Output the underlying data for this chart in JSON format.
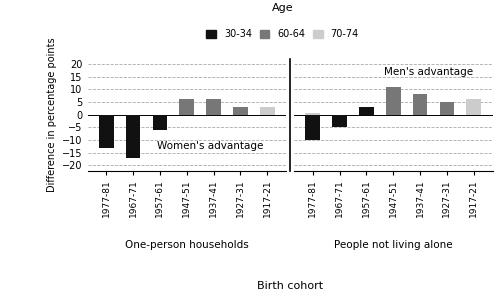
{
  "title": "Age",
  "xlabel": "Birth cohort",
  "ylabel": "Difference in percentage points",
  "ylim": [
    -22,
    22
  ],
  "yticks": [
    -20,
    -15,
    -10,
    -5,
    0,
    5,
    10,
    15,
    20
  ],
  "cohorts": [
    "1977-81",
    "1967-71",
    "1957-61",
    "1947-51",
    "1937-41",
    "1927-31",
    "1917-21"
  ],
  "legend_labels": [
    "30-34",
    "60-64",
    "70-74"
  ],
  "legend_colors": [
    "#111111",
    "#777777",
    "#cccccc"
  ],
  "left_label": "One-person households",
  "right_label": "People not living alone",
  "annotation_left": "Women's advantage",
  "annotation_right": "Men's advantage",
  "left_data": {
    "30-34": [
      -13,
      -17,
      -6,
      null,
      null,
      null,
      null
    ],
    "60-64": [
      null,
      null,
      null,
      6,
      6,
      3,
      null
    ],
    "70-74": [
      null,
      null,
      null,
      null,
      null,
      null,
      3
    ]
  },
  "right_data": {
    "30-34": [
      -10,
      -5,
      3,
      null,
      null,
      null,
      null
    ],
    "60-64": [
      null,
      null,
      null,
      11,
      8,
      5,
      null
    ],
    "70-74": [
      0.5,
      null,
      null,
      null,
      null,
      null,
      6
    ]
  },
  "bar_width": 0.55,
  "grid_color": "#aaaaaa",
  "background_color": "#ffffff"
}
